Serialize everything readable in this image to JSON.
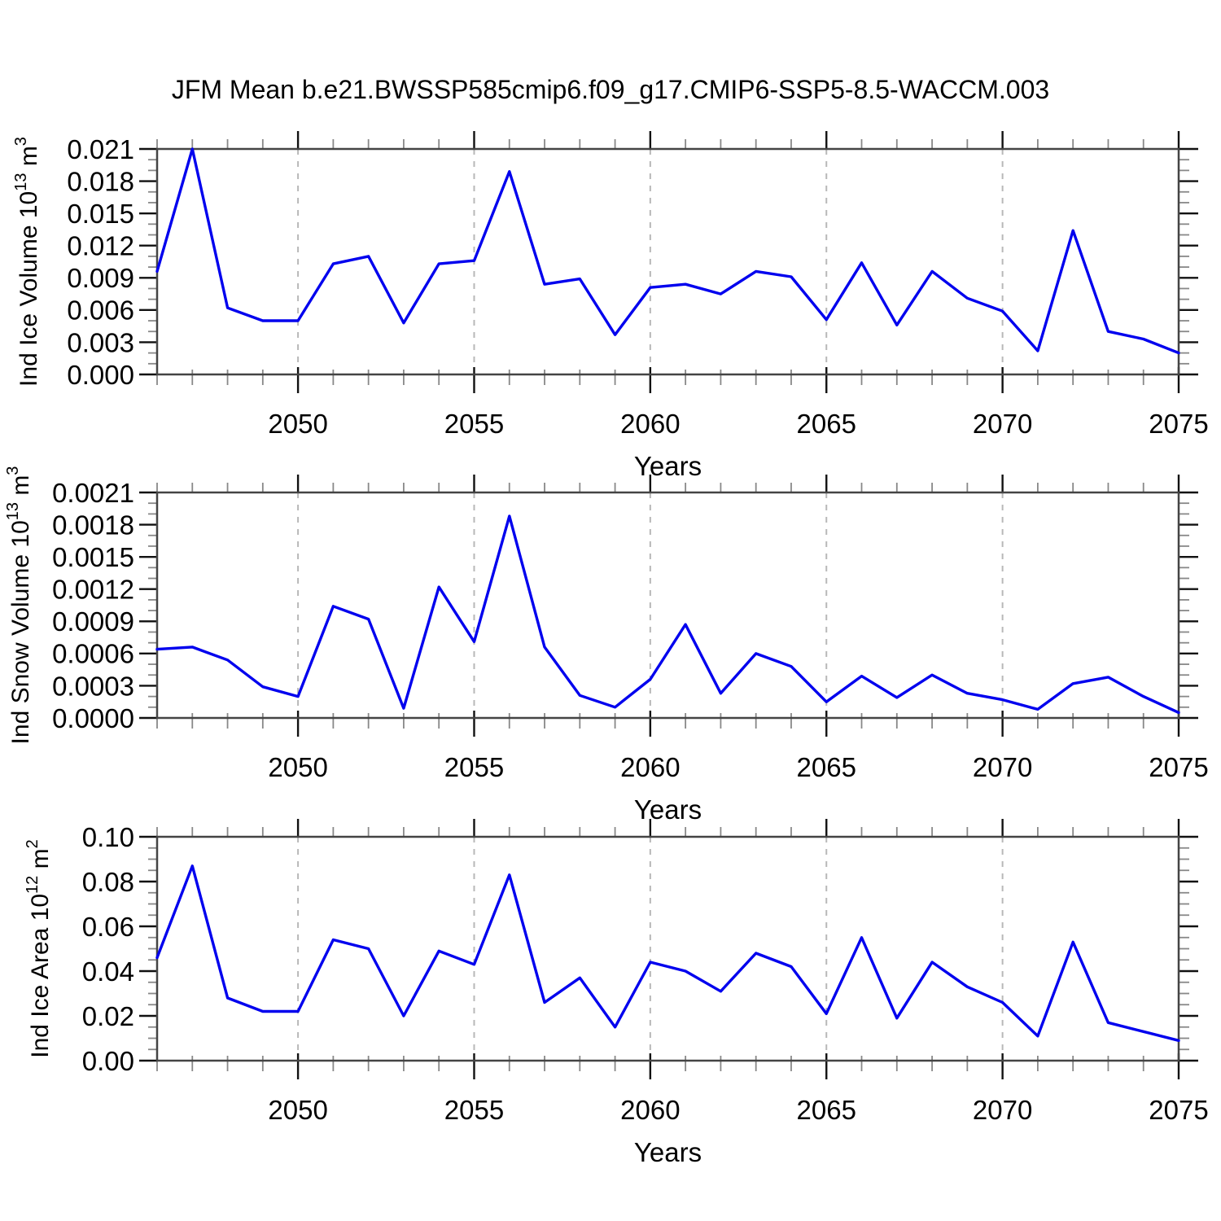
{
  "header": {
    "title": "JFM Mean b.e21.BWSSP585cmip6.f09_g17.CMIP6-SSP5-8.5-WACCM.003"
  },
  "colors": {
    "line": "#0000ee",
    "frame": "#444444",
    "major_tick": "#111111",
    "minor_tick": "#888888",
    "gridline": "#b8b8b8",
    "text": "#000000"
  },
  "chart_data": [
    {
      "type": "line",
      "name": "ice-volume",
      "title": "",
      "xlabel": "Years",
      "ylabel": "Ind Ice Volume 10^13 m^3",
      "ylabel_parts": [
        {
          "t": "Ind Ice Volume 10"
        },
        {
          "t": "13",
          "sup": true
        },
        {
          "t": " m"
        },
        {
          "t": "3",
          "sup": true
        }
      ],
      "x": [
        2046,
        2047,
        2048,
        2049,
        2050,
        2051,
        2052,
        2053,
        2054,
        2055,
        2056,
        2057,
        2058,
        2059,
        2060,
        2061,
        2062,
        2063,
        2064,
        2065,
        2066,
        2067,
        2068,
        2069,
        2070,
        2071,
        2072,
        2073,
        2074,
        2075
      ],
      "y": [
        0.0096,
        0.021,
        0.0062,
        0.005,
        0.005,
        0.0103,
        0.011,
        0.0048,
        0.0103,
        0.0106,
        0.0189,
        0.0084,
        0.0089,
        0.0037,
        0.0081,
        0.0084,
        0.0075,
        0.0096,
        0.0091,
        0.0051,
        0.0104,
        0.0046,
        0.0096,
        0.0071,
        0.0059,
        0.0022,
        0.0134,
        0.004,
        0.0033,
        0.002
      ],
      "xlim": [
        2046,
        2075
      ],
      "ylim": [
        0,
        0.021
      ],
      "xticks": [
        2050,
        2055,
        2060,
        2065,
        2070,
        2075
      ],
      "xtick_labels": [
        "2050",
        "2055",
        "2060",
        "2065",
        "2070",
        "2075"
      ],
      "xminor_step": 1,
      "ytick_step": 0.003,
      "yminor_step": 0.001,
      "ytick_labels": [
        "0.000",
        "0.003",
        "0.006",
        "0.009",
        "0.012",
        "0.015",
        "0.018",
        "0.021"
      ],
      "grid_years": [
        2050,
        2055,
        2060,
        2065,
        2070
      ],
      "grid": "vertical-dashed",
      "legend": "none"
    },
    {
      "type": "line",
      "name": "snow-volume",
      "title": "",
      "xlabel": "Years",
      "ylabel": "Ind Snow Volume 10^13 m^3",
      "ylabel_parts": [
        {
          "t": "Ind Snow Volume 10"
        },
        {
          "t": "13",
          "sup": true
        },
        {
          "t": " m"
        },
        {
          "t": "3",
          "sup": true
        }
      ],
      "x": [
        2046,
        2047,
        2048,
        2049,
        2050,
        2051,
        2052,
        2053,
        2054,
        2055,
        2056,
        2057,
        2058,
        2059,
        2060,
        2061,
        2062,
        2063,
        2064,
        2065,
        2066,
        2067,
        2068,
        2069,
        2070,
        2071,
        2072,
        2073,
        2074,
        2075
      ],
      "y": [
        0.00064,
        0.00066,
        0.00054,
        0.00029,
        0.0002,
        0.00104,
        0.00092,
        9e-05,
        0.00122,
        0.00071,
        0.00188,
        0.00066,
        0.00021,
        0.0001,
        0.00036,
        0.00087,
        0.00023,
        0.0006,
        0.00048,
        0.00015,
        0.00039,
        0.00019,
        0.0004,
        0.00023,
        0.00017,
        8e-05,
        0.00032,
        0.00038,
        0.0002,
        5e-05
      ],
      "xlim": [
        2046,
        2075
      ],
      "ylim": [
        0,
        0.0021
      ],
      "xticks": [
        2050,
        2055,
        2060,
        2065,
        2070,
        2075
      ],
      "xtick_labels": [
        "2050",
        "2055",
        "2060",
        "2065",
        "2070",
        "2075"
      ],
      "xminor_step": 1,
      "ytick_step": 0.0003,
      "yminor_step": 0.0001,
      "ytick_labels": [
        "0.0000",
        "0.0003",
        "0.0006",
        "0.0009",
        "0.0012",
        "0.0015",
        "0.0018",
        "0.0021"
      ],
      "grid_years": [
        2050,
        2055,
        2060,
        2065,
        2070
      ],
      "grid": "vertical-dashed",
      "legend": "none"
    },
    {
      "type": "line",
      "name": "ice-area",
      "title": "",
      "xlabel": "Years",
      "ylabel": "Ind Ice Area 10^12 m^2",
      "ylabel_parts": [
        {
          "t": "Ind Ice Area 10"
        },
        {
          "t": "12",
          "sup": true
        },
        {
          "t": " m"
        },
        {
          "t": "2",
          "sup": true
        }
      ],
      "x": [
        2046,
        2047,
        2048,
        2049,
        2050,
        2051,
        2052,
        2053,
        2054,
        2055,
        2056,
        2057,
        2058,
        2059,
        2060,
        2061,
        2062,
        2063,
        2064,
        2065,
        2066,
        2067,
        2068,
        2069,
        2070,
        2071,
        2072,
        2073,
        2074,
        2075
      ],
      "y": [
        0.046,
        0.087,
        0.028,
        0.022,
        0.022,
        0.054,
        0.05,
        0.02,
        0.049,
        0.043,
        0.083,
        0.026,
        0.037,
        0.015,
        0.044,
        0.04,
        0.031,
        0.048,
        0.042,
        0.021,
        0.055,
        0.019,
        0.044,
        0.033,
        0.026,
        0.011,
        0.053,
        0.017,
        0.013,
        0.009
      ],
      "xlim": [
        2046,
        2075
      ],
      "ylim": [
        0,
        0.1
      ],
      "xticks": [
        2050,
        2055,
        2060,
        2065,
        2070,
        2075
      ],
      "xtick_labels": [
        "2050",
        "2055",
        "2060",
        "2065",
        "2070",
        "2075"
      ],
      "xminor_step": 1,
      "ytick_step": 0.02,
      "yminor_step": 0.005,
      "ytick_labels": [
        "0.00",
        "0.02",
        "0.04",
        "0.06",
        "0.08",
        "0.10"
      ],
      "grid_years": [
        2050,
        2055,
        2060,
        2065,
        2070
      ],
      "grid": "vertical-dashed",
      "legend": "none"
    }
  ]
}
